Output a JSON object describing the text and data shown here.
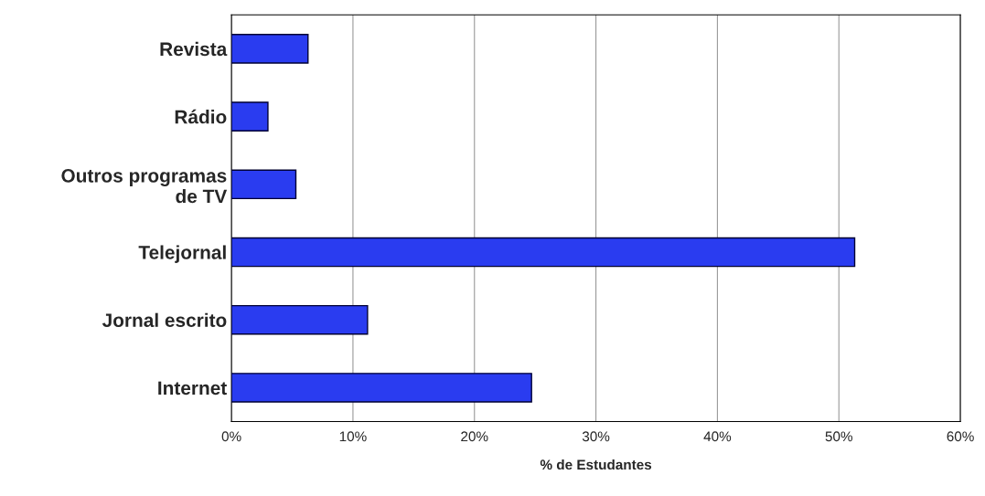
{
  "chart_data": {
    "type": "bar",
    "orientation": "horizontal",
    "xlabel": "% de Estudantes",
    "categories": [
      "Revista",
      "Rádio",
      "Outros programas\nde TV",
      "Telejornal",
      "Jornal escrito",
      "Internet"
    ],
    "values": [
      6.3,
      3,
      5.3,
      51.3,
      11.2,
      24.7
    ],
    "color": "#2a3cf0",
    "xlim": [
      0,
      60
    ],
    "xticks": [
      {
        "value": 0,
        "label": "0%"
      },
      {
        "value": 10,
        "label": "10%"
      },
      {
        "value": 20,
        "label": "20%"
      },
      {
        "value": 30,
        "label": "30%"
      },
      {
        "value": 40,
        "label": "40%"
      },
      {
        "value": 50,
        "label": "50%"
      },
      {
        "value": 60,
        "label": "60%"
      }
    ],
    "grid": "x"
  }
}
